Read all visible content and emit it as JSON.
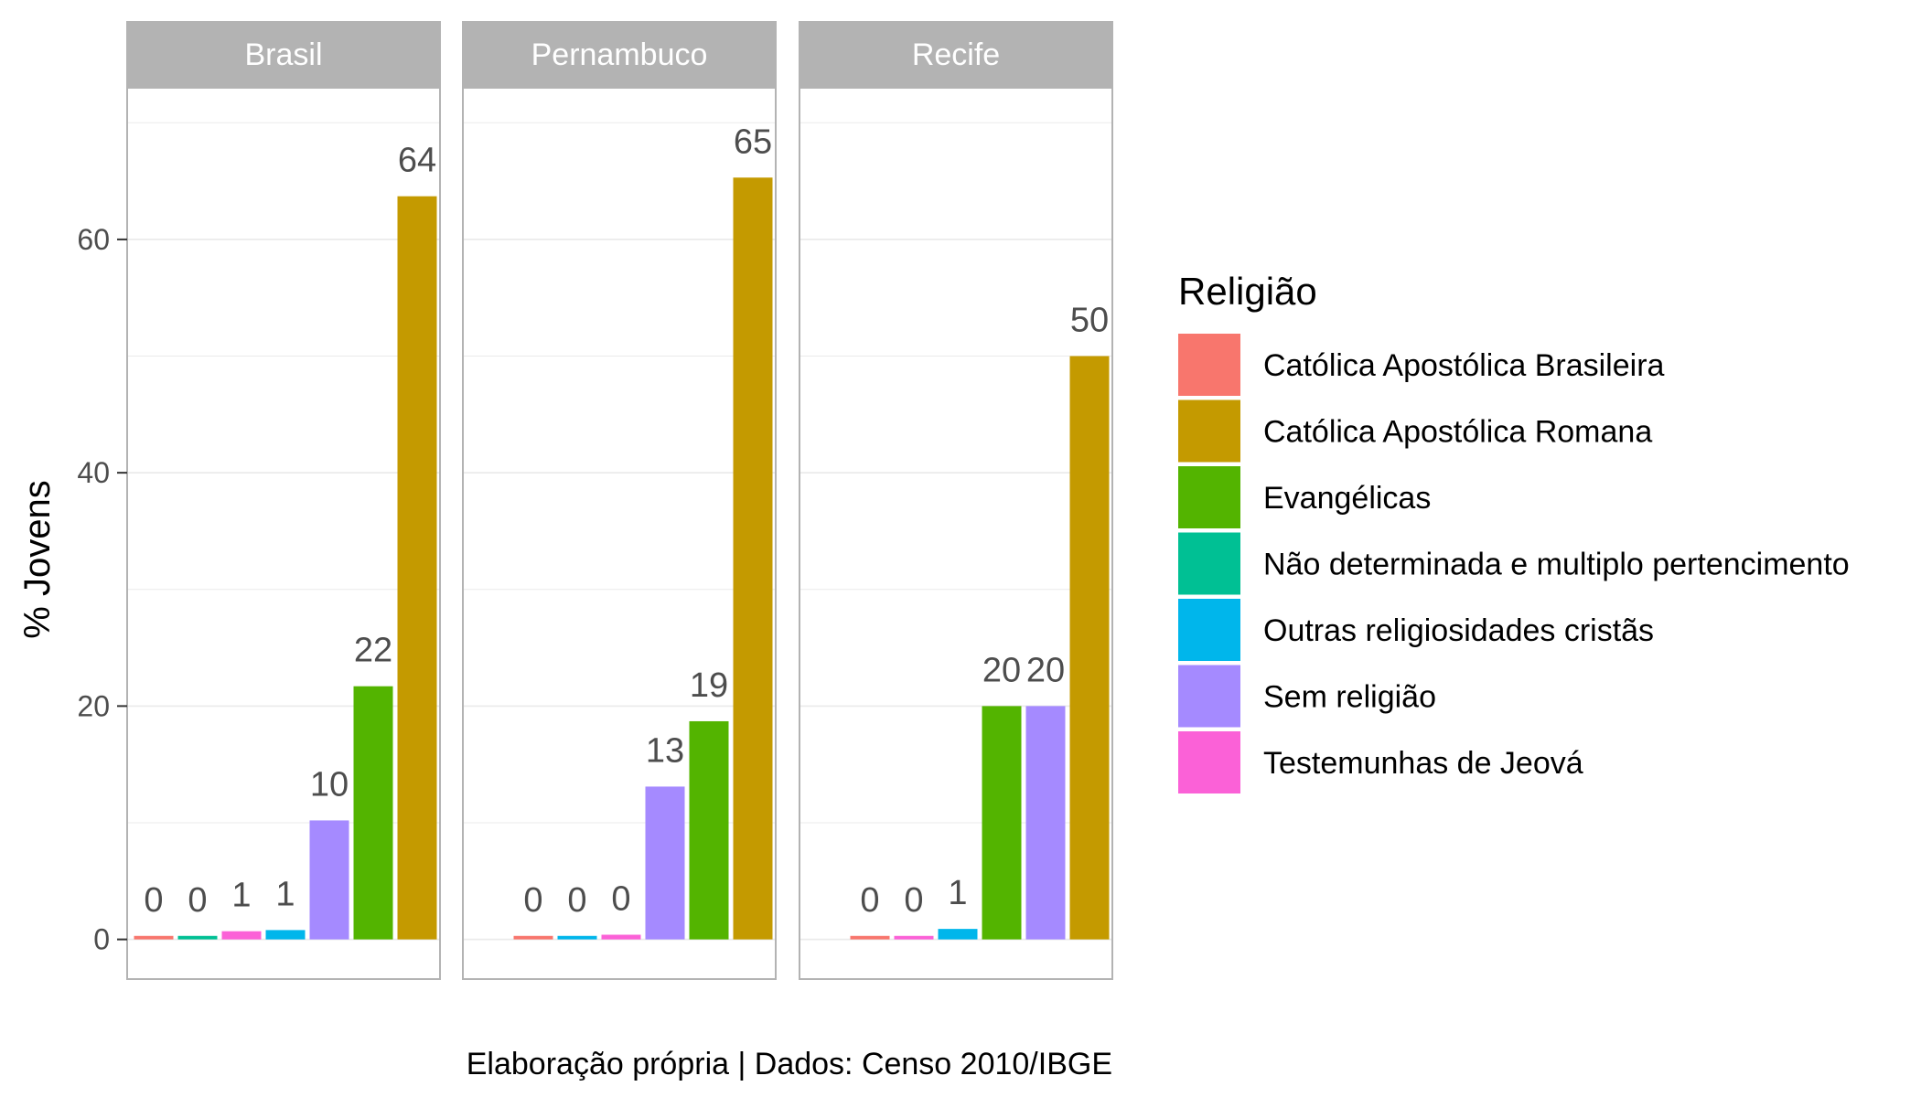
{
  "chart_data": {
    "type": "bar",
    "ylabel": "% Jovens",
    "ylim": [
      -3.4,
      73
    ],
    "yticks": [
      0,
      20,
      40,
      60
    ],
    "legend_title": "Religião",
    "legend_position": "right",
    "caption": "Elaboração própria | Dados: Censo 2010/IBGE",
    "grid": true,
    "categories": [
      {
        "name": "Católica Apostólica Brasileira",
        "color": "#F8766D"
      },
      {
        "name": "Católica Apostólica Romana",
        "color": "#C49A00"
      },
      {
        "name": "Evangélicas",
        "color": "#53B400"
      },
      {
        "name": "Não determinada e multiplo pertencimento",
        "color": "#00C094"
      },
      {
        "name": "Outras religiosidades cristãs",
        "color": "#00B6EB"
      },
      {
        "name": "Sem religião",
        "color": "#A58AFF"
      },
      {
        "name": "Testemunhas de Jeová",
        "color": "#FB61D7"
      }
    ],
    "panels": [
      {
        "name": "Brasil",
        "bars": [
          {
            "category": "Católica Apostólica Brasileira",
            "value": 0.3,
            "label": "0"
          },
          {
            "category": "Não determinada e multiplo pertencimento",
            "value": 0.3,
            "label": "0"
          },
          {
            "category": "Testemunhas de Jeová",
            "value": 0.7,
            "label": "1"
          },
          {
            "category": "Outras religiosidades cristãs",
            "value": 0.8,
            "label": "1"
          },
          {
            "category": "Sem religião",
            "value": 10.2,
            "label": "10"
          },
          {
            "category": "Evangélicas",
            "value": 21.7,
            "label": "22"
          },
          {
            "category": "Católica Apostólica Romana",
            "value": 63.7,
            "label": "64"
          }
        ]
      },
      {
        "name": "Pernambuco",
        "bars": [
          {
            "category": "Católica Apostólica Brasileira",
            "value": 0.3,
            "label": "0"
          },
          {
            "category": "Outras religiosidades cristãs",
            "value": 0.3,
            "label": "0"
          },
          {
            "category": "Testemunhas de Jeová",
            "value": 0.4,
            "label": "0"
          },
          {
            "category": "Sem religião",
            "value": 13.1,
            "label": "13"
          },
          {
            "category": "Evangélicas",
            "value": 18.7,
            "label": "19"
          },
          {
            "category": "Católica Apostólica Romana",
            "value": 65.3,
            "label": "65"
          }
        ]
      },
      {
        "name": "Recife",
        "bars": [
          {
            "category": "Católica Apostólica Brasileira",
            "value": 0.3,
            "label": "0"
          },
          {
            "category": "Testemunhas de Jeová",
            "value": 0.3,
            "label": "0"
          },
          {
            "category": "Outras religiosidades cristãs",
            "value": 0.9,
            "label": "1"
          },
          {
            "category": "Evangélicas",
            "value": 20.0,
            "label": "20"
          },
          {
            "category": "Sem religião",
            "value": 20.0,
            "label": "20"
          },
          {
            "category": "Católica Apostólica Romana",
            "value": 50.0,
            "label": "50"
          }
        ]
      }
    ]
  }
}
